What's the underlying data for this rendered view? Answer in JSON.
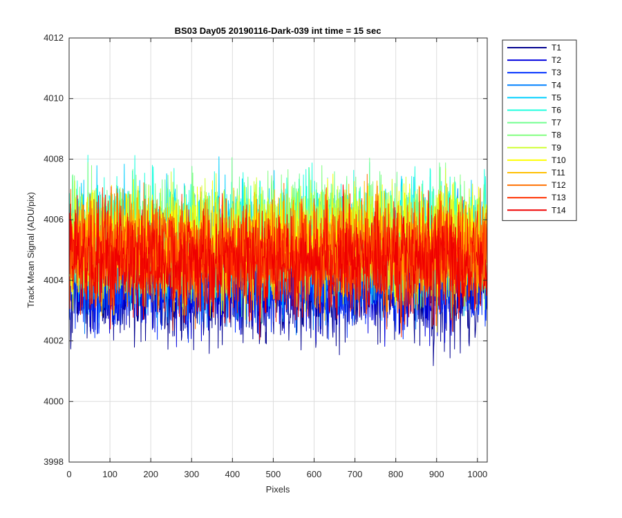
{
  "chart_data": {
    "type": "line",
    "title": "BS03 Day05 20190116-Dark-039 int time = 15 sec",
    "xlabel": "Pixels",
    "ylabel": "Track Mean Signal (ADU/pix)",
    "xlim": [
      0,
      1024
    ],
    "ylim": [
      3998,
      4012
    ],
    "xticks": [
      "0",
      "100",
      "200",
      "300",
      "400",
      "500",
      "600",
      "700",
      "800",
      "900",
      "1000"
    ],
    "yticks": [
      "3998",
      "4000",
      "4002",
      "4004",
      "4006",
      "4008",
      "4010",
      "4012"
    ],
    "grid": true,
    "legend_position": "outside-top-right",
    "x_points": 1024,
    "series": [
      {
        "name": "T1",
        "color": "#00008f",
        "mean": 4003.6,
        "spread": 1.2
      },
      {
        "name": "T2",
        "color": "#0000df",
        "mean": 4003.9,
        "spread": 1.1
      },
      {
        "name": "T3",
        "color": "#0030ff",
        "mean": 4004.1,
        "spread": 1.1
      },
      {
        "name": "T4",
        "color": "#0080ff",
        "mean": 4004.6,
        "spread": 1.2
      },
      {
        "name": "T5",
        "color": "#00cfff",
        "mean": 4005.2,
        "spread": 1.3
      },
      {
        "name": "T6",
        "color": "#20ffdf",
        "mean": 4005.5,
        "spread": 1.3
      },
      {
        "name": "T7",
        "color": "#70ff8f",
        "mean": 4005.5,
        "spread": 1.3
      },
      {
        "name": "T8",
        "color": "#80ff7f",
        "mean": 4005.4,
        "spread": 1.3
      },
      {
        "name": "T9",
        "color": "#cfff30",
        "mean": 4005.3,
        "spread": 1.3
      },
      {
        "name": "T10",
        "color": "#ffff00",
        "mean": 4005.2,
        "spread": 1.3
      },
      {
        "name": "T11",
        "color": "#ffbf00",
        "mean": 4005.0,
        "spread": 1.2
      },
      {
        "name": "T12",
        "color": "#ff7000",
        "mean": 4004.9,
        "spread": 1.2
      },
      {
        "name": "T13",
        "color": "#ff3000",
        "mean": 4004.8,
        "spread": 1.2
      },
      {
        "name": "T14",
        "color": "#ef0000",
        "mean": 4004.6,
        "spread": 1.2
      }
    ]
  }
}
